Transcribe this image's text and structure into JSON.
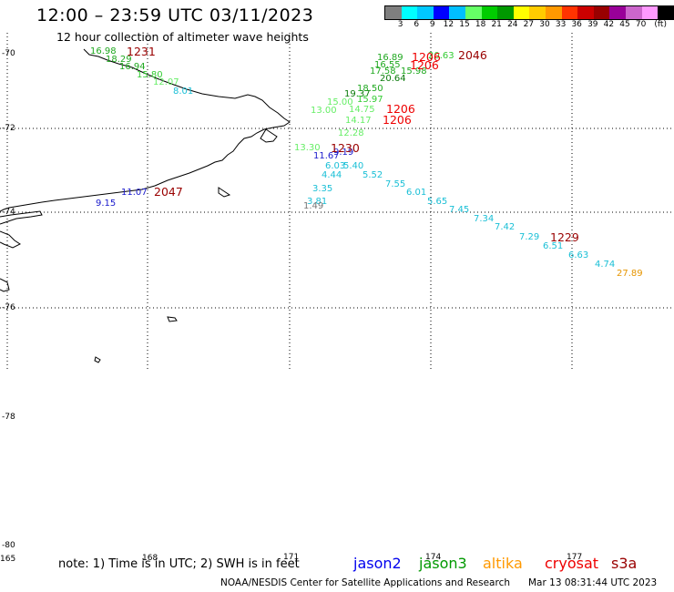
{
  "title": "12:00 – 23:59 UTC 03/11/2023",
  "subtitle": "12 hour collection of altimeter wave heights",
  "colorbar": {
    "colors": [
      "#7f7f7f",
      "#00ffff",
      "#00c8ff",
      "#0000ff",
      "#00bfff",
      "#66ff66",
      "#00cc00",
      "#009900",
      "#ffff00",
      "#ffcc00",
      "#ff9900",
      "#ff3300",
      "#cc0000",
      "#990000",
      "#990099",
      "#cc66cc",
      "#ff99ff",
      "#000000"
    ],
    "labels": [
      "3",
      "6",
      "9",
      "12",
      "15",
      "18",
      "21",
      "24",
      "27",
      "30",
      "33",
      "36",
      "39",
      "42",
      "45",
      "70",
      "(ft)"
    ]
  },
  "lat_labels": [
    "-70",
    "-72",
    "-74",
    "-76",
    "-78",
    "-80"
  ],
  "lon_labels": [
    "165",
    "168",
    "171",
    "174",
    "177"
  ],
  "observations": [
    {
      "text": "16.98",
      "color": "#1fa81f"
    },
    {
      "text": "18.29",
      "color": "#1fa81f"
    },
    {
      "text": "16.94",
      "color": "#1fa81f"
    },
    {
      "text": "15.80",
      "color": "#33cc33"
    },
    {
      "text": "12.07",
      "color": "#66ee66"
    },
    {
      "text": "8.01",
      "color": "#19bfd6"
    },
    {
      "text": "16.89",
      "color": "#1fa81f"
    },
    {
      "text": "16.55",
      "color": "#1fa81f"
    },
    {
      "text": "17.58",
      "color": "#1fa81f"
    },
    {
      "text": "20.64",
      "color": "#0a7a0a"
    },
    {
      "text": "15.98",
      "color": "#1fa81f"
    },
    {
      "text": "20.63",
      "color": "#33cc33"
    },
    {
      "text": "19.37",
      "color": "#0a7a0a"
    },
    {
      "text": "18.50",
      "color": "#1fa81f"
    },
    {
      "text": "15.00",
      "color": "#66ee66"
    },
    {
      "text": "15.97",
      "color": "#33cc33"
    },
    {
      "text": "13.00",
      "color": "#66ee66"
    },
    {
      "text": "14.75",
      "color": "#66ee66"
    },
    {
      "text": "14.17",
      "color": "#66ee66"
    },
    {
      "text": "12.28",
      "color": "#66ee66"
    },
    {
      "text": "13.30",
      "color": "#66ee66"
    },
    {
      "text": "11.67",
      "color": "#1a1acc"
    },
    {
      "text": "9.19",
      "color": "#1a1acc"
    },
    {
      "text": "6.03",
      "color": "#19bfd6"
    },
    {
      "text": "5.40",
      "color": "#19bfd6"
    },
    {
      "text": "4.44",
      "color": "#19bfd6"
    },
    {
      "text": "5.52",
      "color": "#19bfd6"
    },
    {
      "text": "7.55",
      "color": "#19bfd6"
    },
    {
      "text": "3.35",
      "color": "#19bfd6"
    },
    {
      "text": "6.01",
      "color": "#19bfd6"
    },
    {
      "text": "3.81",
      "color": "#19bfd6"
    },
    {
      "text": "1.49",
      "color": "#777777"
    },
    {
      "text": "5.65",
      "color": "#19bfd6"
    },
    {
      "text": "7.45",
      "color": "#19bfd6"
    },
    {
      "text": "7.34",
      "color": "#19bfd6"
    },
    {
      "text": "7.42",
      "color": "#19bfd6"
    },
    {
      "text": "7.29",
      "color": "#19bfd6"
    },
    {
      "text": "6.51",
      "color": "#19bfd6"
    },
    {
      "text": "6.63",
      "color": "#19bfd6"
    },
    {
      "text": "4.74",
      "color": "#19bfd6"
    },
    {
      "text": "27.89",
      "color": "#e69500"
    },
    {
      "text": "11.07",
      "color": "#1a1acc"
    },
    {
      "text": "9.15",
      "color": "#1a1acc"
    }
  ],
  "time_labels": [
    {
      "text": "1231",
      "color": "#990000"
    },
    {
      "text": "1206",
      "color": "#ee0000"
    },
    {
      "text": "1206",
      "color": "#ee0000"
    },
    {
      "text": "2046",
      "color": "#990000"
    },
    {
      "text": "1206",
      "color": "#ee0000"
    },
    {
      "text": "1206",
      "color": "#ee0000"
    },
    {
      "text": "1230",
      "color": "#990000"
    },
    {
      "text": "2047",
      "color": "#990000"
    },
    {
      "text": "1229",
      "color": "#990000"
    }
  ],
  "footer": {
    "note": "note: 1) Time is in UTC; 2) SWH is in feet",
    "legend": [
      {
        "name": "jason2",
        "color": "#0000ee"
      },
      {
        "name": "jason3",
        "color": "#009900"
      },
      {
        "name": "altika",
        "color": "#ff9900"
      },
      {
        "name": "cryosat",
        "color": "#ee0000"
      },
      {
        "name": "s3a",
        "color": "#990000"
      }
    ],
    "credit": "NOAA/NESDIS Center for Satellite Applications and Research",
    "timestamp": "Mar 13 08:31:44 UTC 2023"
  }
}
